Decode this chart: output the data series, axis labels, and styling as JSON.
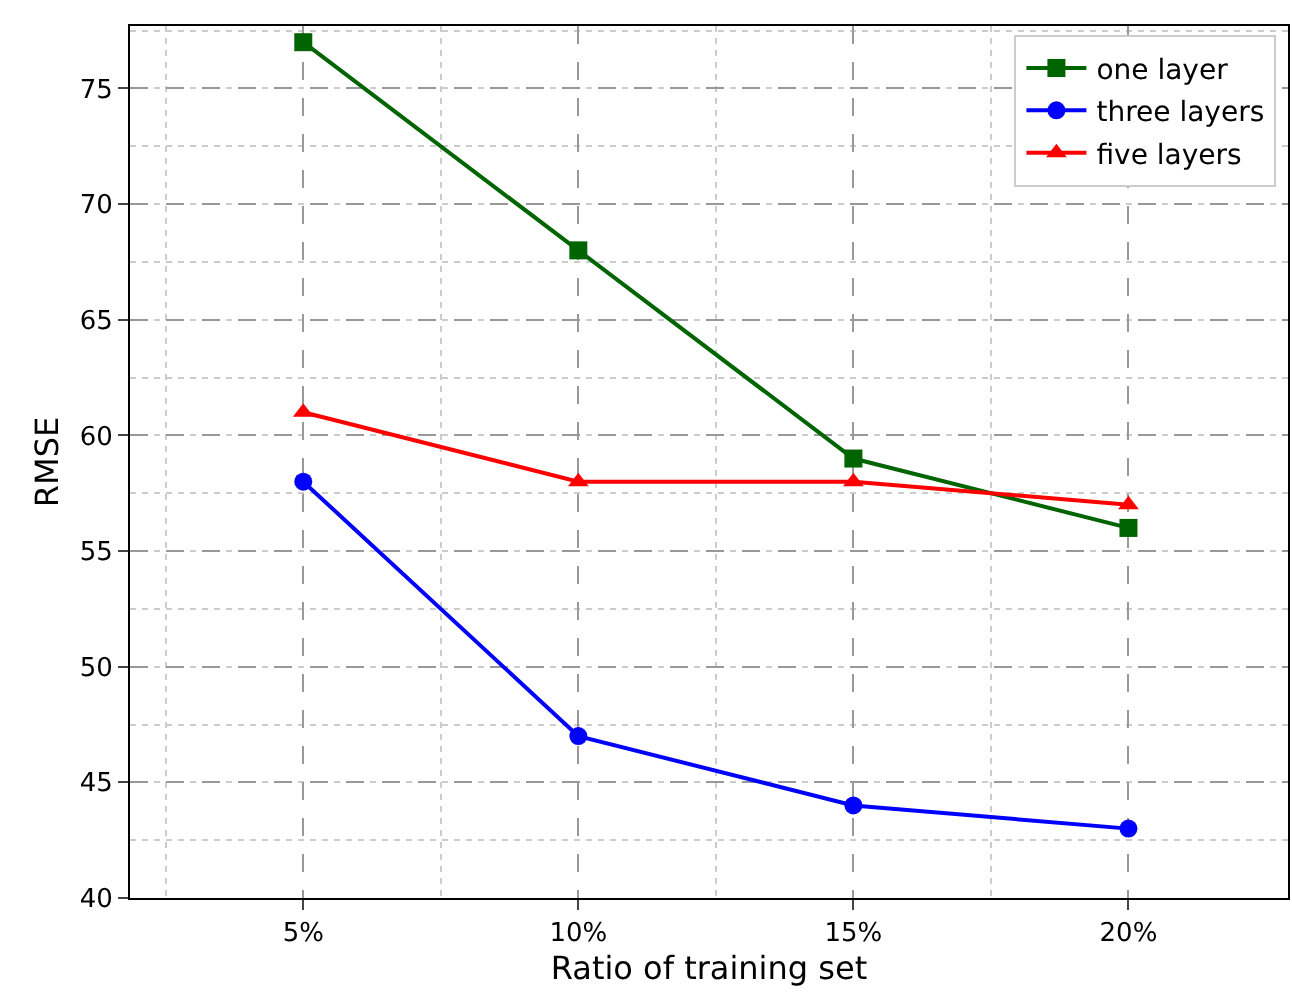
{
  "chart_data": {
    "type": "line",
    "xlabel": "Ratio of training set",
    "ylabel": "RMSE",
    "categories": [
      "5%",
      "10%",
      "15%",
      "20%"
    ],
    "series": [
      {
        "name": "one layer",
        "color": "#006400",
        "marker": "square",
        "values": [
          77,
          68,
          59,
          56
        ]
      },
      {
        "name": "three layers",
        "color": "#0000ff",
        "marker": "circle",
        "values": [
          58,
          47,
          44,
          43
        ]
      },
      {
        "name": "five layers",
        "color": "#ff0000",
        "marker": "triangle",
        "values": [
          61,
          58,
          58,
          57
        ]
      }
    ],
    "ylim": [
      40,
      77.7
    ],
    "yticks": [
      40,
      45,
      50,
      55,
      60,
      65,
      70,
      75
    ],
    "grid": true,
    "legend": "top right",
    "line_style": "solid"
  }
}
